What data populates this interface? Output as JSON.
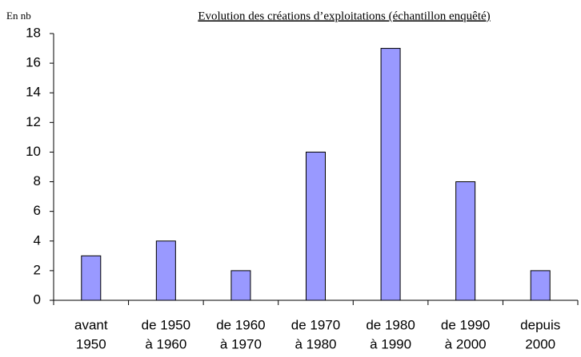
{
  "chart_data": {
    "type": "bar",
    "title": "Evolution des créations d’exploitations (échantillon enquêté)",
    "y_label": "En nb",
    "categories": [
      [
        "avant",
        "1950"
      ],
      [
        "de 1950",
        "à 1960"
      ],
      [
        "de 1960",
        "à 1970"
      ],
      [
        "de 1970",
        "à 1980"
      ],
      [
        "de 1980",
        "à 1990"
      ],
      [
        "de 1990",
        "à 2000"
      ],
      [
        "depuis",
        "2000"
      ]
    ],
    "values": [
      3,
      4,
      2,
      10,
      17,
      8,
      2
    ],
    "color": "#9999ff",
    "ylim": [
      0,
      18
    ],
    "yticks": [
      0,
      2,
      4,
      6,
      8,
      10,
      12,
      14,
      16,
      18
    ],
    "grid": false
  }
}
